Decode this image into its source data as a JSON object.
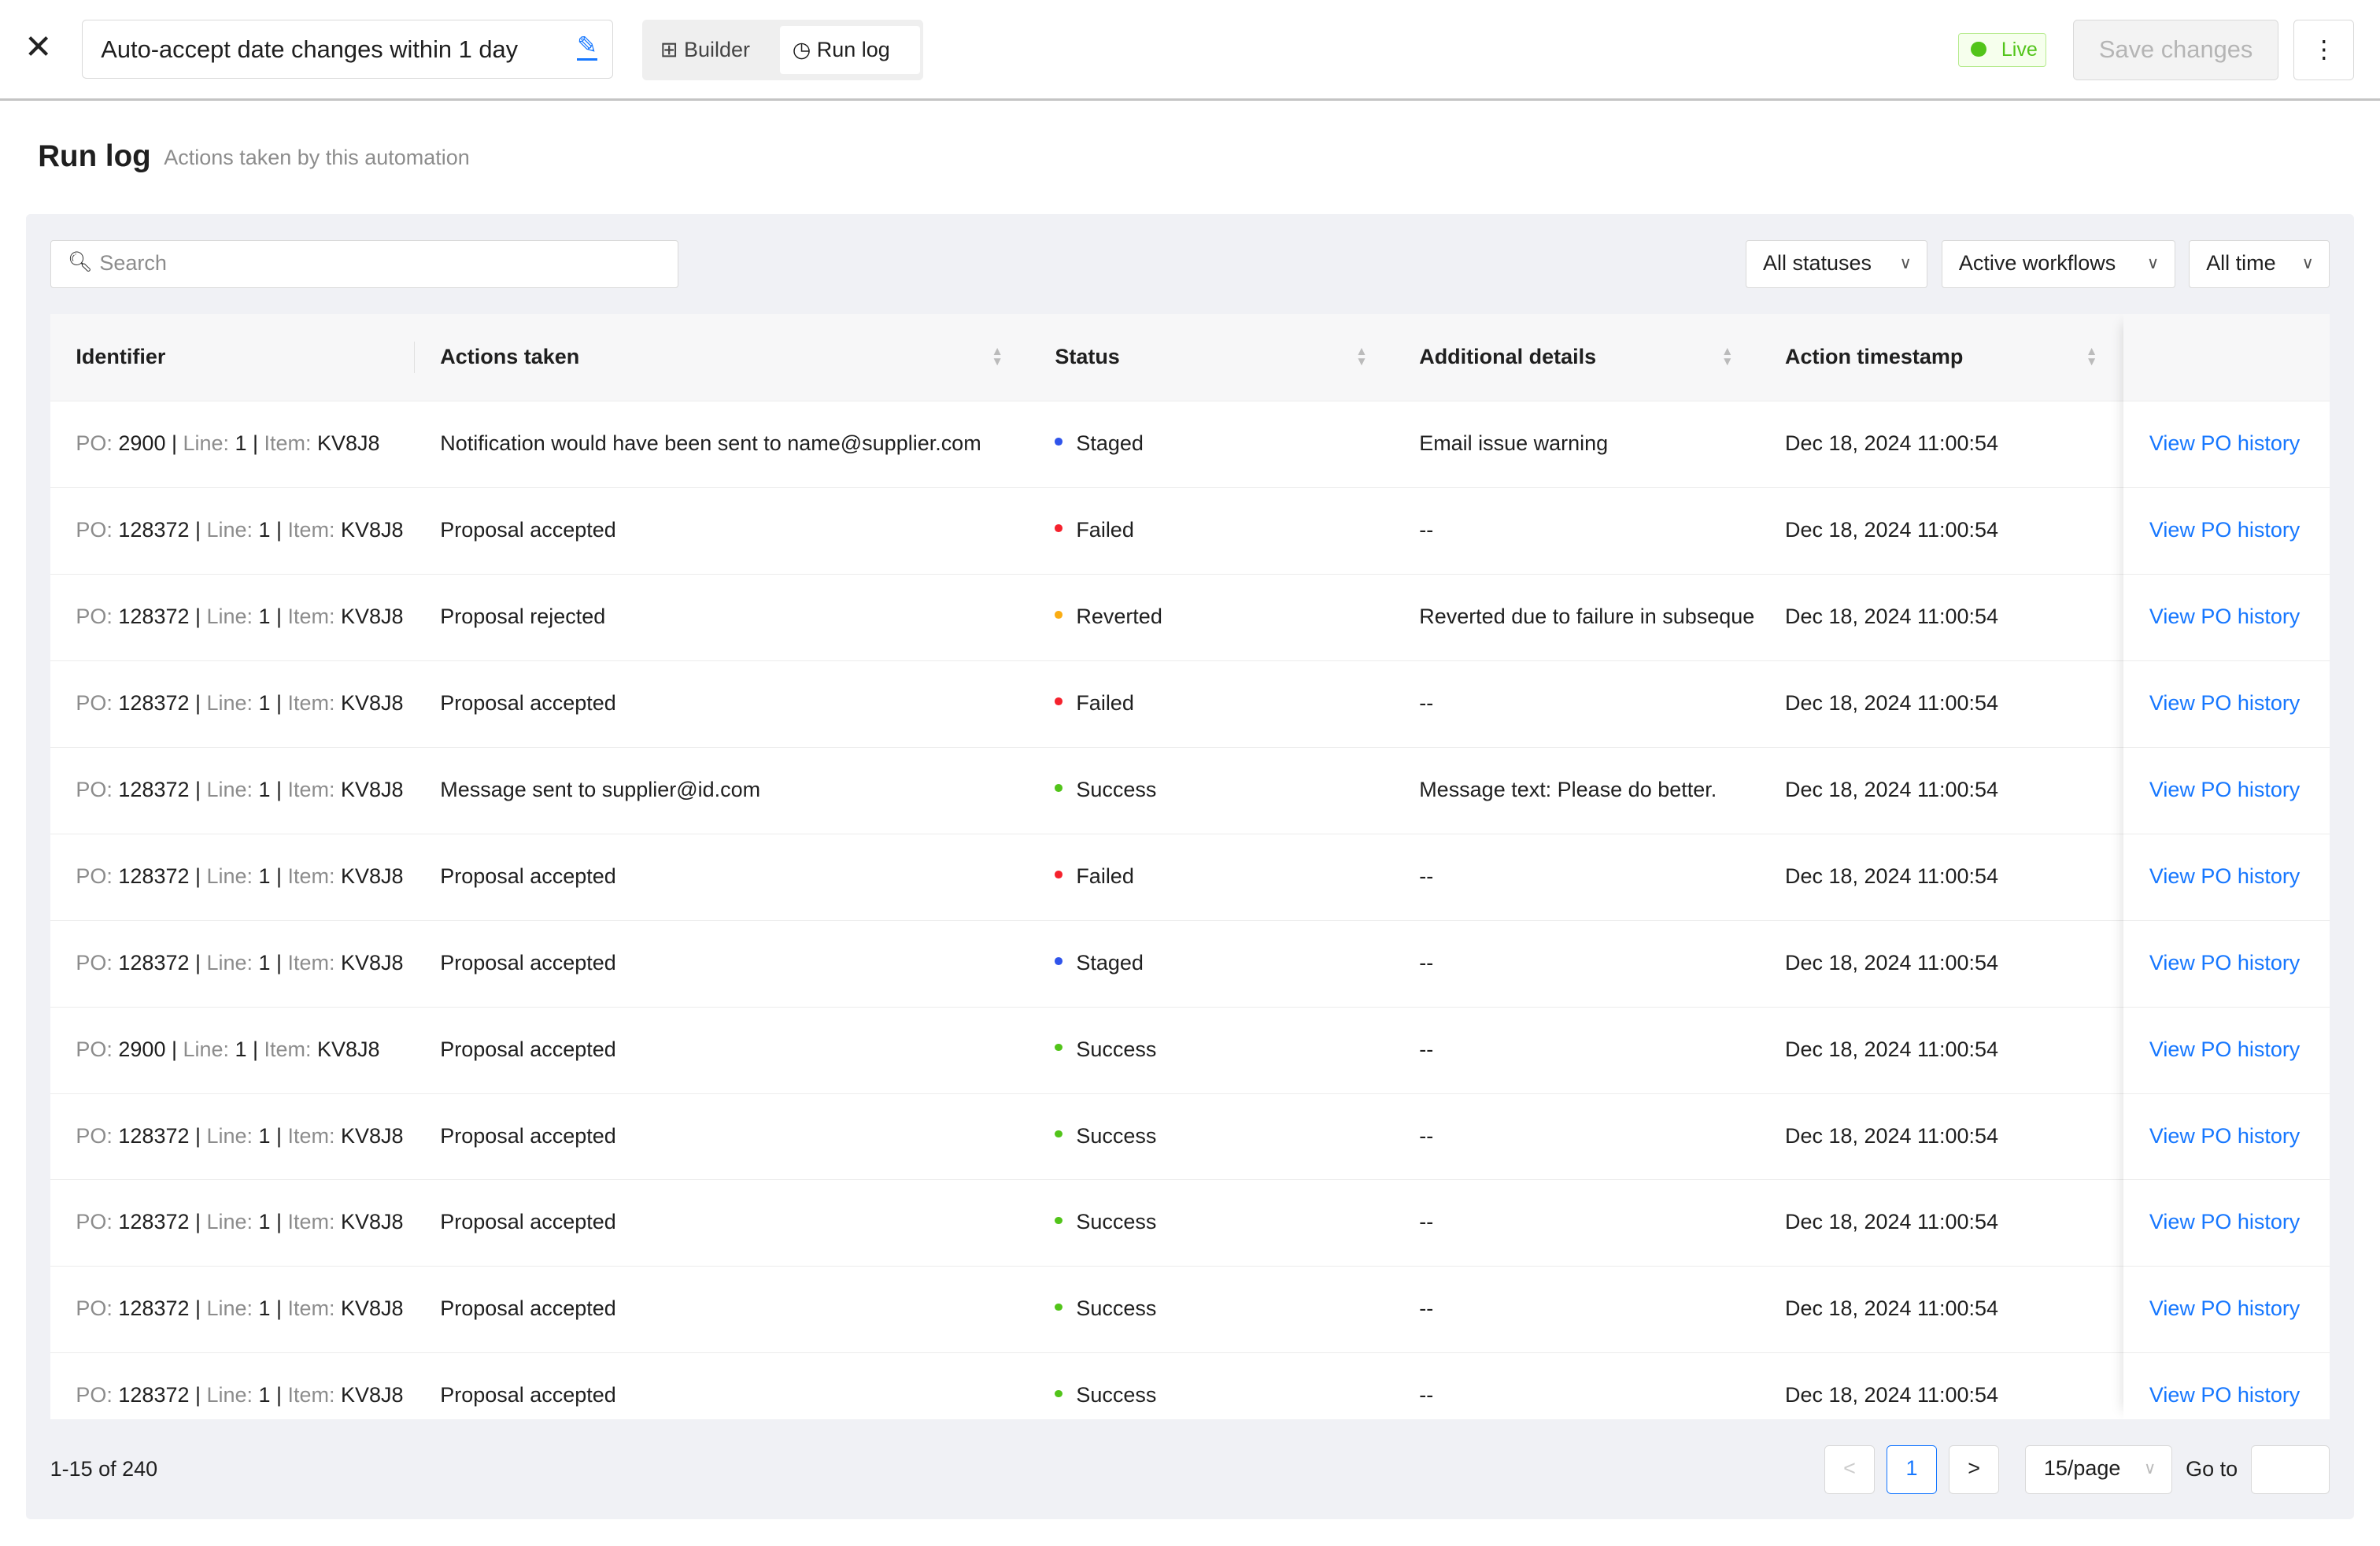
{
  "header": {
    "close_icon": "close-icon",
    "automation_title": "Auto-accept date changes within 1 day",
    "tabs": [
      {
        "label": "Builder",
        "icon": "builder-grid-icon"
      },
      {
        "label": "Run log",
        "icon": "history-clock-icon",
        "active": true
      }
    ],
    "status_badge": "Live",
    "save_label": "Save changes",
    "more_icon": "more-vertical-icon"
  },
  "page": {
    "title": "Run log",
    "subtitle": "Actions taken by this automation"
  },
  "filters": {
    "search_placeholder": "Search",
    "status": "All statuses",
    "workflow": "Active workflows",
    "time": "All time"
  },
  "table": {
    "columns": [
      "Identifier",
      "Actions taken",
      "Status",
      "Additional details",
      "Action timestamp"
    ],
    "id_labels": {
      "po": "PO:",
      "line": "Line:",
      "item": "Item:",
      "sep": "|"
    },
    "status_colors": {
      "Staged": "#2f54eb",
      "Failed": "#f5222d",
      "Reverted": "#faad14",
      "Success": "#52c41a"
    },
    "rows": [
      {
        "po": "2900",
        "line": "1",
        "item": "KV8J8",
        "action": "Notification would have been sent to name@supplier.com",
        "status": "Staged",
        "details": "Email issue warning",
        "timestamp": "Dec 18, 2024 11:00:54",
        "link": "View PO history"
      },
      {
        "po": "128372",
        "line": "1",
        "item": "KV8J8",
        "action": "Proposal accepted",
        "status": "Failed",
        "details": "--",
        "timestamp": "Dec 18, 2024 11:00:54",
        "link": "View PO history"
      },
      {
        "po": "128372",
        "line": "1",
        "item": "KV8J8",
        "action": "Proposal rejected",
        "status": "Reverted",
        "details": "Reverted due to failure in subseque",
        "timestamp": "Dec 18, 2024 11:00:54",
        "link": "View PO history"
      },
      {
        "po": "128372",
        "line": "1",
        "item": "KV8J8",
        "action": "Proposal accepted",
        "status": "Failed",
        "details": "--",
        "timestamp": "Dec 18, 2024 11:00:54",
        "link": "View PO history"
      },
      {
        "po": "128372",
        "line": "1",
        "item": "KV8J8",
        "action": "Message sent to supplier@id.com",
        "status": "Success",
        "details": "Message text: Please do better.",
        "timestamp": "Dec 18, 2024 11:00:54",
        "link": "View PO history"
      },
      {
        "po": "128372",
        "line": "1",
        "item": "KV8J8",
        "action": "Proposal accepted",
        "status": "Failed",
        "details": "--",
        "timestamp": "Dec 18, 2024 11:00:54",
        "link": "View PO history"
      },
      {
        "po": "128372",
        "line": "1",
        "item": "KV8J8",
        "action": "Proposal accepted",
        "status": "Staged",
        "details": "--",
        "timestamp": "Dec 18, 2024 11:00:54",
        "link": "View PO history"
      },
      {
        "po": "2900",
        "line": "1",
        "item": "KV8J8",
        "action": "Proposal accepted",
        "status": "Success",
        "details": "--",
        "timestamp": "Dec 18, 2024 11:00:54",
        "link": "View PO history"
      },
      {
        "po": "128372",
        "line": "1",
        "item": "KV8J8",
        "action": "Proposal accepted",
        "status": "Success",
        "details": "--",
        "timestamp": "Dec 18, 2024 11:00:54",
        "link": "View PO history"
      },
      {
        "po": "128372",
        "line": "1",
        "item": "KV8J8",
        "action": "Proposal accepted",
        "status": "Success",
        "details": "--",
        "timestamp": "Dec 18, 2024 11:00:54",
        "link": "View PO history"
      },
      {
        "po": "128372",
        "line": "1",
        "item": "KV8J8",
        "action": "Proposal accepted",
        "status": "Success",
        "details": "--",
        "timestamp": "Dec 18, 2024 11:00:54",
        "link": "View PO history"
      },
      {
        "po": "128372",
        "line": "1",
        "item": "KV8J8",
        "action": "Proposal accepted",
        "status": "Success",
        "details": "--",
        "timestamp": "Dec 18, 2024 11:00:54",
        "link": "View PO history"
      }
    ]
  },
  "pagination": {
    "summary": "1-15 of 240",
    "current_page": "1",
    "page_size": "15/page",
    "goto_label": "Go to",
    "goto_value": ""
  }
}
